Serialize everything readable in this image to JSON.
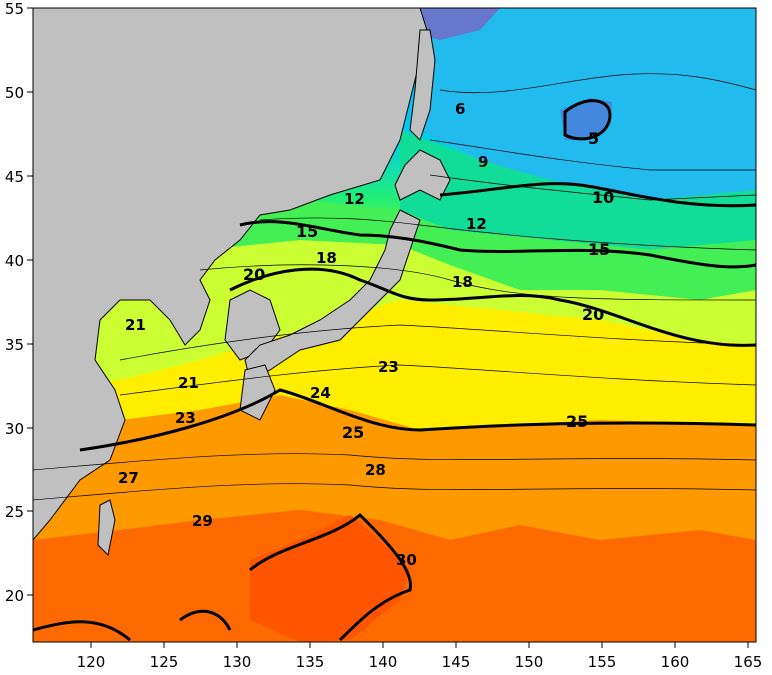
{
  "map": {
    "x_ticks": [
      "120",
      "125",
      "130",
      "135",
      "140",
      "145",
      "150",
      "155",
      "160",
      "165"
    ],
    "y_ticks": [
      "55",
      "50",
      "45",
      "40",
      "35",
      "30",
      "25",
      "20"
    ],
    "contour_labels": {
      "c5": "5",
      "c6": "6",
      "c9": "9",
      "c10": "10",
      "c12a": "12",
      "c12b": "12",
      "c15a": "15",
      "c15b": "15",
      "c18a": "18",
      "c18b": "18",
      "c20a": "20",
      "c20b": "20",
      "c21a": "21",
      "c21b": "21",
      "c23a": "23",
      "c23b": "23",
      "c24": "24",
      "c25a": "25",
      "c25b": "25",
      "c27": "27",
      "c28": "28",
      "c29": "29",
      "c30": "30"
    },
    "colors": {
      "land": "#c0c0c0",
      "warm": "#ff6600",
      "orange": "#ff9900",
      "yellow": "#ffff00",
      "yellow_green": "#ccff33",
      "green": "#33dd55",
      "teal": "#00ddaa",
      "cyan": "#00ccff",
      "blue": "#3399ee",
      "purple": "#6666cc"
    }
  }
}
